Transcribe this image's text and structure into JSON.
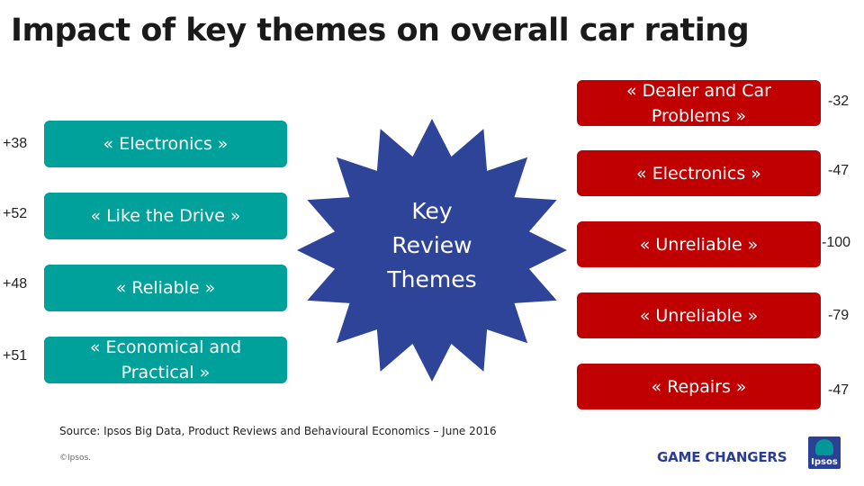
{
  "title": "Impact of key themes on overall car rating",
  "center": {
    "lines": [
      "Key",
      "Review",
      "Themes"
    ],
    "color": "#2e4499"
  },
  "positive_themes": [
    {
      "label": "« Electronics »",
      "score": "+38"
    },
    {
      "label": "« Like the Drive »",
      "score": "+52"
    },
    {
      "label": "« Reliable »",
      "score": "+48"
    },
    {
      "label": "« Economical and Practical »",
      "score": "+51"
    }
  ],
  "negative_themes": [
    {
      "label": "« Dealer and Car Problems »",
      "score": "-32"
    },
    {
      "label": "« Electronics »",
      "score": "-47"
    },
    {
      "label": "« Unreliable »",
      "score": "-100"
    },
    {
      "label": "« Unreliable »",
      "score": "-79"
    },
    {
      "label": "« Repairs »",
      "score": "-47"
    }
  ],
  "colors": {
    "positive": "#00a19a",
    "negative": "#c00000",
    "star": "#2e4499",
    "brand": "#2b3d92"
  },
  "source": "Source: Ipsos Big Data, Product Reviews and Behavioural Economics – June 2016",
  "copyright": "©Ipsos.",
  "brand": "GAME CHANGERS",
  "logo_text": "Ipsos"
}
